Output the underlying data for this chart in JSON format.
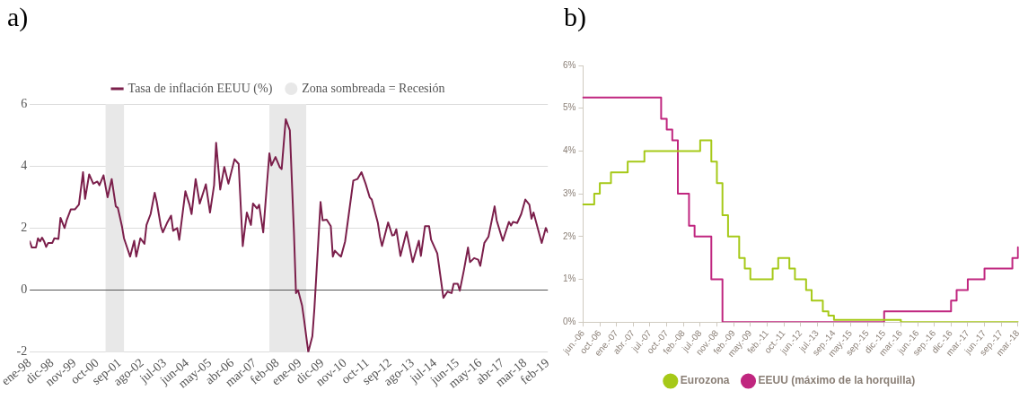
{
  "chart_data": [
    {
      "type": "line",
      "title": "a)",
      "legend": "top",
      "grid": "y",
      "x": [
        "1998-01",
        "1998-02",
        "1998-04",
        "1998-05",
        "1998-06",
        "1998-07",
        "1998-08",
        "1998-09",
        "1998-10",
        "1998-12",
        "1999-01",
        "1999-03",
        "1999-04",
        "1999-06",
        "1999-07",
        "1999-09",
        "1999-11",
        "2000-01",
        "2000-03",
        "2000-04",
        "2000-06",
        "2000-08",
        "2000-10",
        "2000-11",
        "2001-01",
        "2001-03",
        "2001-05",
        "2001-07",
        "2001-08",
        "2001-10",
        "2001-11",
        "2002-02",
        "2002-04",
        "2002-05",
        "2002-07",
        "2002-09",
        "2002-10",
        "2002-12",
        "2003-02",
        "2003-03",
        "2003-05",
        "2003-06",
        "2003-08",
        "2003-10",
        "2003-11",
        "2004-01",
        "2004-02",
        "2004-05",
        "2004-07",
        "2004-08",
        "2004-10",
        "2004-12",
        "2005-03",
        "2005-05",
        "2005-07",
        "2005-08",
        "2005-10",
        "2005-12",
        "2006-02",
        "2006-05",
        "2006-07",
        "2006-09",
        "2006-11",
        "2007-01",
        "2007-02",
        "2007-04",
        "2007-05",
        "2007-07",
        "2007-10",
        "2007-11",
        "2008-01",
        "2008-03",
        "2008-04",
        "2008-06",
        "2008-08",
        "2008-10",
        "2008-11",
        "2008-12",
        "2009-02",
        "2009-03",
        "2009-05",
        "2009-07",
        "2009-08",
        "2009-11",
        "2009-12",
        "2010-02",
        "2010-04",
        "2010-05",
        "2010-06",
        "2010-08",
        "2010-09",
        "2010-11",
        "2010-12",
        "2011-03",
        "2011-05",
        "2011-07",
        "2011-09",
        "2011-11",
        "2011-12",
        "2012-03",
        "2012-04",
        "2012-05",
        "2012-08",
        "2012-10",
        "2012-11",
        "2012-12",
        "2013-02",
        "2013-05",
        "2013-08",
        "2013-11",
        "2013-12",
        "2014-02",
        "2014-04",
        "2014-05",
        "2014-08",
        "2014-11",
        "2015-01",
        "2015-03",
        "2015-04",
        "2015-06",
        "2015-07",
        "2015-09",
        "2015-11",
        "2015-12",
        "2016-02",
        "2016-04",
        "2016-05",
        "2016-07",
        "2016-09",
        "2016-12",
        "2017-01",
        "2017-04",
        "2017-07",
        "2017-08",
        "2017-09",
        "2017-11",
        "2018-01",
        "2018-03",
        "2018-05",
        "2018-06",
        "2018-07",
        "2018-11",
        "2019-01",
        "2019-02"
      ],
      "series": [
        {
          "name": "Tasa de inflación EEUU (%)",
          "color": "#7b1f4b",
          "values": [
            1.57,
            1.37,
            1.37,
            1.67,
            1.57,
            1.69,
            1.57,
            1.39,
            1.52,
            1.52,
            1.67,
            1.65,
            2.33,
            2.0,
            2.25,
            2.6,
            2.6,
            2.76,
            3.8,
            2.94,
            3.73,
            3.43,
            3.5,
            3.38,
            3.7,
            2.99,
            3.58,
            2.7,
            2.65,
            2.06,
            1.67,
            1.08,
            1.59,
            1.08,
            1.67,
            1.49,
            2.1,
            2.45,
            3.14,
            2.84,
            2.06,
            1.86,
            2.16,
            2.4,
            1.91,
            2.0,
            1.62,
            3.19,
            2.75,
            2.45,
            3.58,
            2.79,
            3.41,
            2.5,
            3.38,
            4.75,
            3.24,
            3.97,
            3.43,
            4.22,
            4.07,
            1.42,
            2.5,
            2.1,
            2.79,
            2.63,
            2.75,
            1.86,
            4.41,
            4.02,
            4.29,
            3.97,
            3.9,
            5.51,
            5.15,
            1.86,
            -0.1,
            0,
            -0.51,
            -0.98,
            -2.0,
            -1.49,
            -0.59,
            2.84,
            2.25,
            2.27,
            2.06,
            1.08,
            1.27,
            1.13,
            1.08,
            1.57,
            2.06,
            3.53,
            3.58,
            3.8,
            3.43,
            2.99,
            2.92,
            2.16,
            1.72,
            1.42,
            2.18,
            1.76,
            1.78,
            1.96,
            1.1,
            1.88,
            0.9,
            1.59,
            1.1,
            2.06,
            2.06,
            1.62,
            1.18,
            -0.25,
            -0.05,
            -0.1,
            0.2,
            0.2,
            -0.02,
            0.64,
            1.37,
            0.9,
            1.03,
            0.98,
            0.78,
            1.52,
            1.72,
            2.7,
            2.25,
            1.59,
            2.2,
            2.08,
            2.2,
            2.16,
            2.45,
            2.92,
            2.75,
            2.3,
            2.5,
            1.52,
            2.0,
            1.86
          ]
        }
      ],
      "xlim": [
        "1998-01",
        "2019-02"
      ],
      "xticks": [
        {
          "value": "1998-01",
          "label": "ene-98"
        },
        {
          "value": "1998-12",
          "label": "dic-98"
        },
        {
          "value": "1999-11",
          "label": "nov-99"
        },
        {
          "value": "2000-10",
          "label": "oct-00"
        },
        {
          "value": "2001-09",
          "label": "sep-01"
        },
        {
          "value": "2002-08",
          "label": "ago-02"
        },
        {
          "value": "2003-07",
          "label": "jul-03"
        },
        {
          "value": "2004-06",
          "label": "jun-04"
        },
        {
          "value": "2005-05",
          "label": "may-05"
        },
        {
          "value": "2006-04",
          "label": "abr-06"
        },
        {
          "value": "2007-03",
          "label": "mar-07"
        },
        {
          "value": "2008-02",
          "label": "feb-08"
        },
        {
          "value": "2009-01",
          "label": "ene-09"
        },
        {
          "value": "2009-12",
          "label": "dic-09"
        },
        {
          "value": "2010-11",
          "label": "nov-10"
        },
        {
          "value": "2011-10",
          "label": "oct-11"
        },
        {
          "value": "2012-09",
          "label": "sep-12"
        },
        {
          "value": "2013-08",
          "label": "ago-13"
        },
        {
          "value": "2014-07",
          "label": "jul-14"
        },
        {
          "value": "2015-06",
          "label": "jun-15"
        },
        {
          "value": "2016-05",
          "label": "may-16"
        },
        {
          "value": "2017-04",
          "label": "abr-17"
        },
        {
          "value": "2018-03",
          "label": "mar-18"
        },
        {
          "value": "2019-02",
          "label": "feb-19"
        }
      ],
      "ylim": [
        -2,
        6
      ],
      "yticks": [
        -2,
        0,
        2,
        4,
        6
      ],
      "ref_lines": [
        {
          "axis": "y",
          "value": 0,
          "color": "#555555"
        }
      ],
      "bands": [
        {
          "axis": "x",
          "from": "2001-02",
          "to": "2001-11",
          "label": "Zona sombreada = Recesión",
          "color": "#e8e8e8"
        },
        {
          "axis": "x",
          "from": "2007-10",
          "to": "2009-04",
          "color": "#e8e8e8"
        }
      ]
    },
    {
      "type": "step",
      "title": "b)",
      "legend": "bottom",
      "grid": false,
      "categories": [
        "jun.-06",
        null,
        null,
        "oct.-06",
        null,
        null,
        "ene.-07",
        null,
        null,
        "abr.-07",
        null,
        null,
        "jul.-07",
        null,
        null,
        "oct.-07",
        null,
        null,
        "feb.-08",
        null,
        null,
        "jul.-08",
        null,
        null,
        "nov.-08",
        null,
        null,
        "feb.-09",
        null,
        null,
        "may.-09",
        null,
        null,
        "feb.-11",
        null,
        null,
        "oct.-11",
        null,
        null,
        "jun.-12",
        null,
        null,
        "jul.-13",
        null,
        null,
        "sep.-14",
        null,
        null,
        "may.-15",
        null,
        null,
        "sep.-15",
        null,
        null,
        "dic.-15",
        null,
        null,
        "mar.-16",
        null,
        null,
        "jun.-16",
        null,
        null,
        "sep.-16",
        null,
        null,
        "dic.-16",
        null,
        null,
        "mar.-17",
        null,
        null,
        "jun.-17",
        null,
        null,
        "sep.-17",
        null,
        null,
        "mar.-18"
      ],
      "series": [
        {
          "name": "Eurozona",
          "color": "#a6c918",
          "values": [
            2.75,
            2.75,
            3.0,
            3.25,
            3.25,
            3.5,
            3.5,
            3.5,
            3.75,
            3.75,
            3.75,
            4.0,
            4.0,
            4.0,
            4.0,
            4.0,
            4.0,
            4.0,
            4.0,
            4.0,
            4.0,
            4.25,
            4.25,
            3.75,
            3.25,
            2.5,
            2.0,
            2.0,
            1.5,
            1.25,
            1.0,
            1.0,
            1.0,
            1.0,
            1.25,
            1.5,
            1.5,
            1.25,
            1.0,
            1.0,
            0.75,
            0.5,
            0.5,
            0.25,
            0.15,
            0.05,
            0.05,
            0.05,
            0.05,
            0.05,
            0.05,
            0.05,
            0.05,
            0.05,
            0.05,
            0.05,
            0.05,
            0,
            0,
            0,
            0,
            0,
            0,
            0,
            0,
            0,
            0,
            0,
            0,
            0,
            0,
            0,
            0,
            0,
            0,
            0,
            0,
            0,
            0
          ]
        },
        {
          "name": "EEUU (máximo de la horquilla)",
          "color": "#c0267f",
          "values": [
            5.25,
            5.25,
            5.25,
            5.25,
            5.25,
            5.25,
            5.25,
            5.25,
            5.25,
            5.25,
            5.25,
            5.25,
            5.25,
            5.25,
            4.75,
            4.5,
            4.25,
            3.0,
            3.0,
            2.25,
            2.0,
            2.0,
            2.0,
            1.0,
            1.0,
            0,
            0,
            0,
            0,
            0,
            0,
            0,
            0,
            0,
            0,
            0,
            0,
            0,
            0,
            0,
            0,
            0,
            0,
            0,
            0,
            0,
            0,
            0,
            0,
            0,
            0,
            0,
            0,
            0,
            0.25,
            0.25,
            0.25,
            0.25,
            0.25,
            0.25,
            0.25,
            0.25,
            0.25,
            0.25,
            0.25,
            0.25,
            0.5,
            0.75,
            0.75,
            1.0,
            1.0,
            1.0,
            1.25,
            1.25,
            1.25,
            1.25,
            1.25,
            1.5,
            1.75
          ]
        }
      ],
      "ylim": [
        0,
        6
      ],
      "yticks": [
        {
          "value": 0,
          "label": "0%"
        },
        {
          "value": 1,
          "label": "1%"
        },
        {
          "value": 2,
          "label": "2%"
        },
        {
          "value": 3,
          "label": "3%"
        },
        {
          "value": 4,
          "label": "4%"
        },
        {
          "value": 5,
          "label": "5%"
        },
        {
          "value": 6,
          "label": "6%"
        }
      ]
    }
  ]
}
